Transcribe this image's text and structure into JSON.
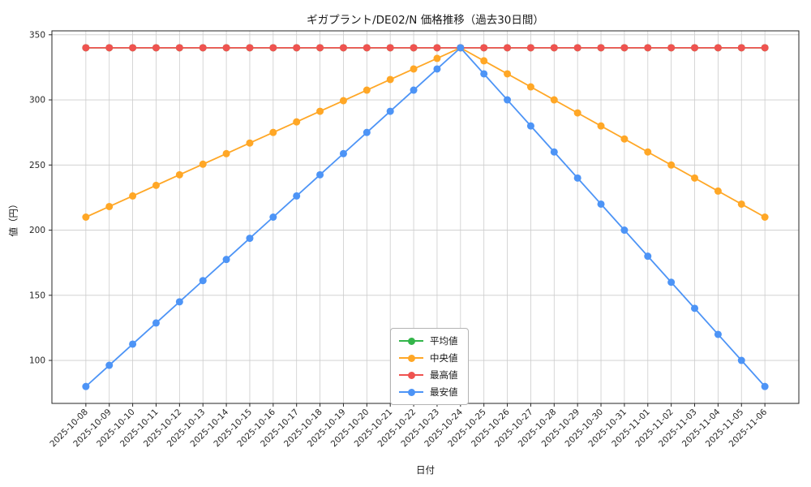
{
  "chart_data": {
    "type": "line",
    "title": "ギガプラント/DE02/N 価格推移（過去30日間）",
    "xlabel": "日付",
    "ylabel": "値（円）",
    "grid": true,
    "legend_position": "inside lower center",
    "ylim": [
      67,
      353
    ],
    "y_ticks": [
      100,
      150,
      200,
      250,
      300,
      350
    ],
    "x": [
      "2025-10-08",
      "2025-10-09",
      "2025-10-10",
      "2025-10-11",
      "2025-10-12",
      "2025-10-13",
      "2025-10-14",
      "2025-10-15",
      "2025-10-16",
      "2025-10-17",
      "2025-10-18",
      "2025-10-19",
      "2025-10-20",
      "2025-10-21",
      "2025-10-22",
      "2025-10-23",
      "2025-10-24",
      "2025-10-25",
      "2025-10-26",
      "2025-10-27",
      "2025-10-28",
      "2025-10-29",
      "2025-10-30",
      "2025-10-31",
      "2025-11-01",
      "2025-11-02",
      "2025-11-03",
      "2025-11-04",
      "2025-11-05",
      "2025-11-06"
    ],
    "series": [
      {
        "key": "average",
        "name": "平均値",
        "color": "#33b54a",
        "values": [
          340,
          340,
          340,
          340,
          340,
          340,
          340,
          340,
          340,
          340,
          340,
          340,
          340,
          340,
          340,
          340,
          340,
          340,
          340,
          340,
          340,
          340,
          340,
          340,
          340,
          340,
          340,
          340,
          340,
          340
        ]
      },
      {
        "key": "median",
        "name": "中央値",
        "color": "#ffa726",
        "values": [
          210,
          218.13,
          226.25,
          234.38,
          242.5,
          250.63,
          258.75,
          266.88,
          275,
          283.13,
          291.25,
          299.38,
          307.5,
          315.63,
          323.75,
          331.88,
          340,
          330,
          320,
          310,
          300,
          290,
          280,
          270,
          260,
          250,
          240,
          230,
          220,
          210
        ]
      },
      {
        "key": "max",
        "name": "最高値",
        "color": "#ef5350",
        "values": [
          340,
          340,
          340,
          340,
          340,
          340,
          340,
          340,
          340,
          340,
          340,
          340,
          340,
          340,
          340,
          340,
          340,
          340,
          340,
          340,
          340,
          340,
          340,
          340,
          340,
          340,
          340,
          340,
          340,
          340
        ]
      },
      {
        "key": "min",
        "name": "最安値",
        "color": "#4d94f6",
        "values": [
          80,
          96.25,
          112.5,
          128.75,
          145,
          161.25,
          177.5,
          193.75,
          210,
          226.25,
          242.5,
          258.75,
          275,
          291.25,
          307.5,
          323.75,
          340,
          320,
          300,
          280,
          260,
          240,
          220,
          200,
          180,
          160,
          140,
          120,
          100,
          80
        ]
      }
    ]
  }
}
